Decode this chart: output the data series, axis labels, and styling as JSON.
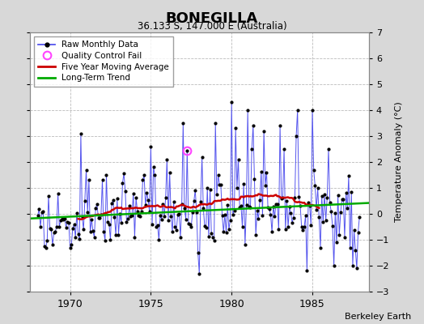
{
  "title": "BONEGILLA",
  "subtitle": "36.133 S, 147.000 E (Australia)",
  "ylabel": "Temperature Anomaly (°C)",
  "attribution": "Berkeley Earth",
  "bg_color": "#d8d8d8",
  "plot_bg_color": "#ffffff",
  "ylim": [
    -3,
    7
  ],
  "yticks": [
    -3,
    -2,
    -1,
    0,
    1,
    2,
    3,
    4,
    5,
    6,
    7
  ],
  "xlim_start": 1967.5,
  "xlim_end": 1988.5,
  "xticks": [
    1970,
    1975,
    1980,
    1985
  ],
  "raw_color": "#5555ee",
  "ma_color": "#cc0000",
  "trend_color": "#00aa00",
  "qc_fail_color": "#ff44ff",
  "marker_color": "#000000",
  "grid_color": "#bbbbbb",
  "grid_style": "--",
  "qc_fail_x": 1977.25,
  "qc_fail_y": 2.45,
  "trend_x0": 1967.5,
  "trend_x1": 1988.5,
  "trend_y0": -0.18,
  "trend_y1": 0.42
}
